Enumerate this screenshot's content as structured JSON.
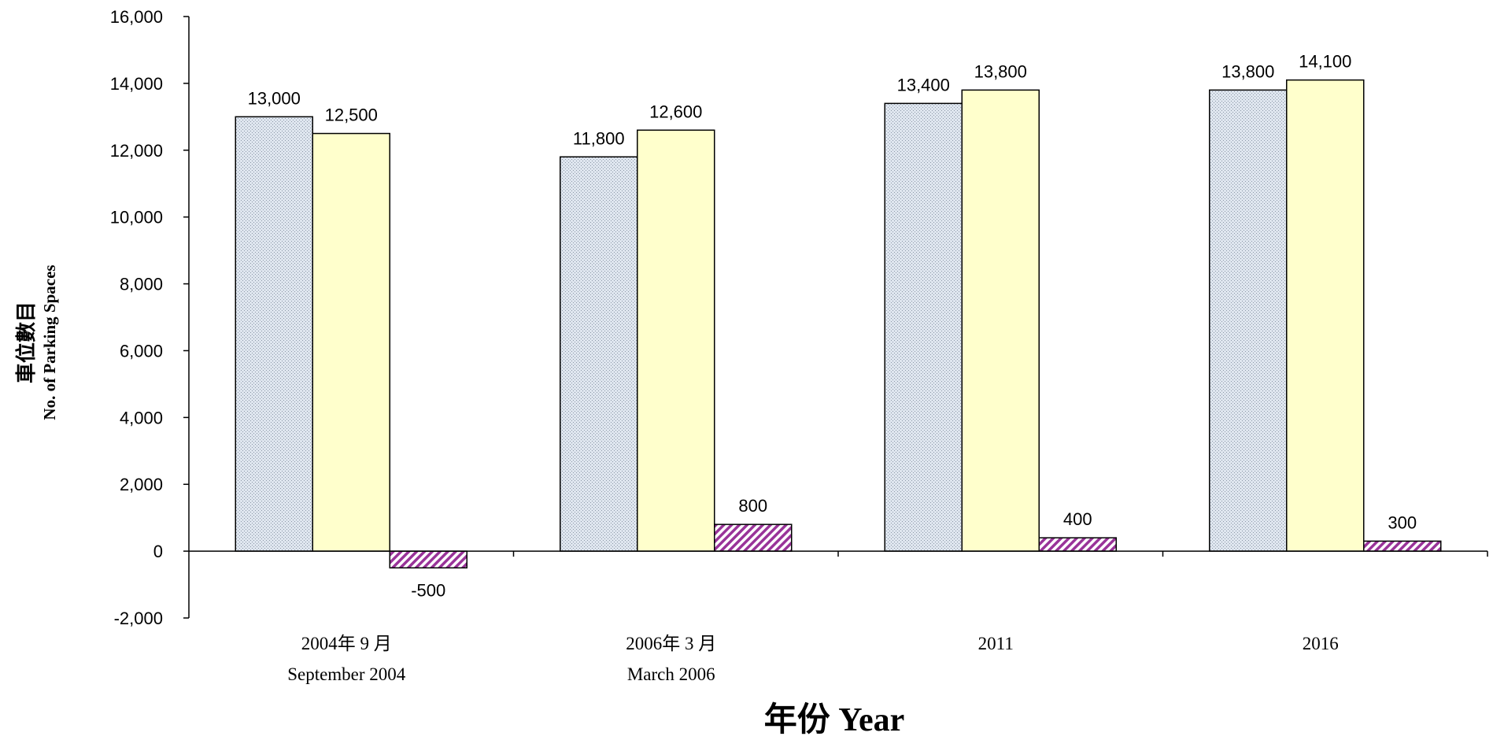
{
  "chart_data": {
    "type": "bar",
    "categories": [
      {
        "line1": "2004年 9 月",
        "line2": "September 2004"
      },
      {
        "line1": "2006年 3 月",
        "line2": "March 2006"
      },
      {
        "line1": "2011",
        "line2": ""
      },
      {
        "line1": "2016",
        "line2": ""
      }
    ],
    "series": [
      {
        "values": [
          13000,
          11800,
          13400,
          13800
        ],
        "fill": "#dfe6ef",
        "pattern": "dots"
      },
      {
        "values": [
          12500,
          12600,
          13800,
          14100
        ],
        "fill": "#ffffcc",
        "pattern": "solid"
      },
      {
        "values": [
          -500,
          800,
          400,
          300
        ],
        "fill": "#993399",
        "pattern": "diagonal-hatch"
      }
    ],
    "data_labels": [
      [
        "13,000",
        "11,800",
        "13,400",
        "13,800"
      ],
      [
        "12,500",
        "12,600",
        "13,800",
        "14,100"
      ],
      [
        "-500",
        "800",
        "400",
        "300"
      ]
    ],
    "xlabel": "年份 Year",
    "ylabel_zh": "車位數目",
    "ylabel_en": "No. of Parking Spaces",
    "ylim": [
      -2000,
      16000
    ],
    "yticks": [
      -2000,
      0,
      2000,
      4000,
      6000,
      8000,
      10000,
      12000,
      14000,
      16000
    ],
    "ytick_labels": [
      "-2,000",
      "0",
      "2,000",
      "4,000",
      "6,000",
      "8,000",
      "10,000",
      "12,000",
      "14,000",
      "16,000"
    ],
    "grid": false,
    "legend": "none"
  }
}
